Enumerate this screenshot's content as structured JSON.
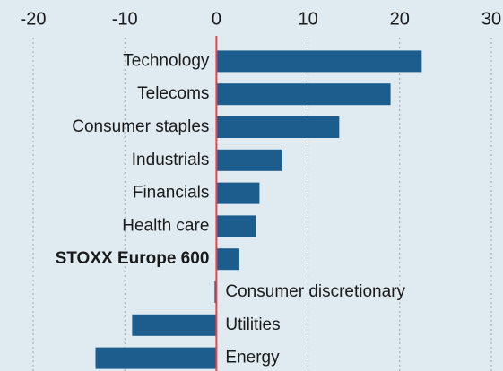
{
  "chart_data": {
    "type": "hbar",
    "categories": [
      "Technology",
      "Telecoms",
      "Consumer staples",
      "Industrials",
      "Financials",
      "Health care",
      "STOXX Europe 600",
      "Consumer discretionary",
      "Utilities",
      "Energy"
    ],
    "values": [
      22.4,
      19.0,
      13.4,
      7.2,
      4.7,
      4.3,
      2.5,
      -0.2,
      -9.2,
      -13.2
    ],
    "color": "#1c5d8d",
    "zero_line_color": "#e0474c",
    "highlight_category": 6,
    "xlim": [
      -20,
      30
    ],
    "xticks": [
      -20,
      -10,
      0,
      10,
      20,
      30
    ],
    "grid": true
  }
}
